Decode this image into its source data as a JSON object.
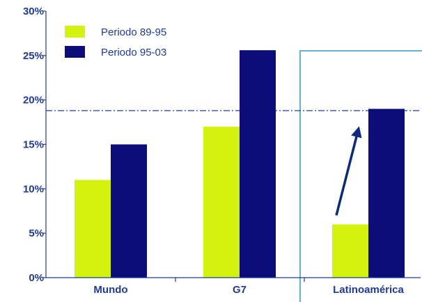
{
  "colors": {
    "text": "#1f3a93",
    "axis": "#1f3a93",
    "series_1": "#d4f20f",
    "series_2": "#0d0d7a",
    "reference_line": "#1f3a93",
    "highlight_box": "#3aa0c8",
    "arrow": "#0d2a7a"
  },
  "chart_data": {
    "type": "bar",
    "categories": [
      "Mundo",
      "G7",
      "Latinoamérica"
    ],
    "series": [
      {
        "name": "Periodo 89-95",
        "values": [
          11,
          17,
          6
        ]
      },
      {
        "name": "Periodo 95-03",
        "values": [
          15,
          25.6,
          19
        ]
      }
    ],
    "ylim": [
      0,
      30
    ],
    "yticks": [
      0,
      5,
      10,
      15,
      20,
      25,
      30
    ],
    "ytick_labels": [
      "0%",
      "5%",
      "10%",
      "15%",
      "20%",
      "25%",
      "30%"
    ],
    "reference_line": {
      "y": 18.8,
      "style": "dash-dot"
    },
    "highlight_category": "Latinoamérica",
    "arrow": {
      "category": "Latinoamérica",
      "from_series": 0,
      "to_series": 1
    },
    "legend_position": "top-left",
    "grid": false
  }
}
